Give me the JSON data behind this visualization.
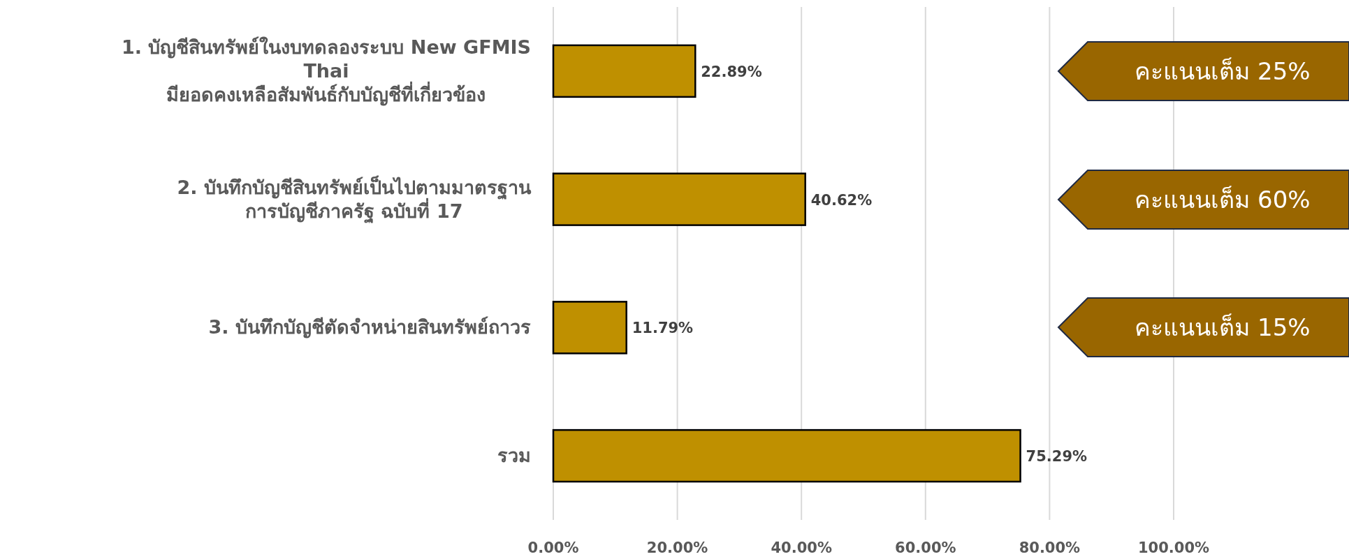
{
  "chart_data": {
    "type": "bar",
    "orientation": "horizontal",
    "categories": [
      "1. บัญชีสินทรัพย์ในงบทดลองระบบ New GFMIS\nThai\nมียอดคงเหลือสัมพันธ์กับบัญชีที่เกี่ยวข้อง",
      "2. บันทึกบัญชีสินทรัพย์เป็นไปตามมาตรฐาน\nการบัญชีภาครัฐ ฉบับที่ 17",
      "3. บันทึกบัญชีตัดจำหน่ายสินทรัพย์ถาวร",
      "รวม"
    ],
    "values": [
      22.89,
      40.62,
      11.79,
      75.29
    ],
    "value_labels": [
      "22.89%",
      "40.62%",
      "11.79%",
      "75.29%"
    ],
    "color": "#bf9000",
    "xlim": [
      0,
      100
    ],
    "xticks": [
      {
        "value": 0,
        "label": "0.00%"
      },
      {
        "value": 20,
        "label": "20.00%"
      },
      {
        "value": 40,
        "label": "40.00%"
      },
      {
        "value": 60,
        "label": "60.00%"
      },
      {
        "value": 80,
        "label": "80.00%"
      },
      {
        "value": 100,
        "label": "100.00%"
      }
    ],
    "grid": "x",
    "annotations": [
      "คะแนนเต็ม 25%",
      "คะแนนเต็ม 60%",
      "คะแนนเต็ม 15%"
    ]
  }
}
